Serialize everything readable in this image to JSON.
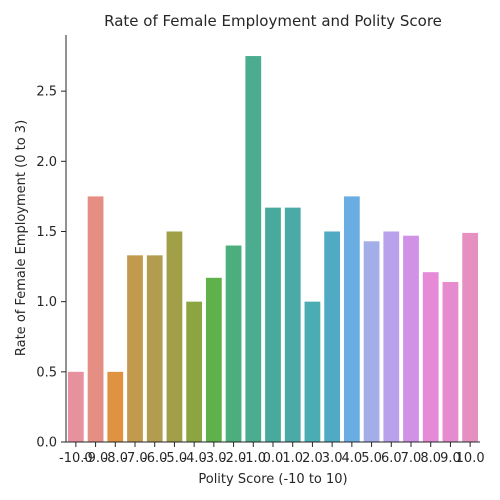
{
  "chart_data": {
    "type": "bar",
    "title": "Rate of Female Employment and Polity Score",
    "xlabel": "Polity Score (-10 to 10)",
    "ylabel": "Rate of Female Employment (0 to 3)",
    "ylim": [
      0,
      2.9
    ],
    "yticks": [
      "0.0",
      "0.5",
      "1.0",
      "1.5",
      "2.0",
      "2.5"
    ],
    "grid": false,
    "categories": [
      "-10.0",
      "-9.0",
      "-8.0",
      "-7.0",
      "-6.0",
      "-5.0",
      "-4.0",
      "-3.0",
      "-2.0",
      "-1.0",
      "0.0",
      "1.0",
      "2.0",
      "3.0",
      "4.0",
      "5.0",
      "6.0",
      "7.0",
      "8.0",
      "9.0",
      "10.0"
    ],
    "values": [
      0.5,
      1.75,
      0.5,
      1.33,
      1.33,
      1.5,
      1.0,
      1.17,
      1.4,
      2.75,
      1.67,
      1.67,
      1.0,
      1.5,
      1.75,
      1.43,
      1.5,
      1.47,
      1.21,
      1.14,
      1.49
    ],
    "colors": [
      "#e8919e",
      "#e58f84",
      "#df9340",
      "#c29a4d",
      "#b19c50",
      "#a1a048",
      "#8ba640",
      "#5fb14a",
      "#4bae7c",
      "#4bac8f",
      "#48aa9d",
      "#49aaa6",
      "#4aadb4",
      "#50aac4",
      "#6aade3",
      "#a3aee8",
      "#b9a1ec",
      "#d091e6",
      "#e68ad7",
      "#e68bcd",
      "#e690c1"
    ]
  }
}
